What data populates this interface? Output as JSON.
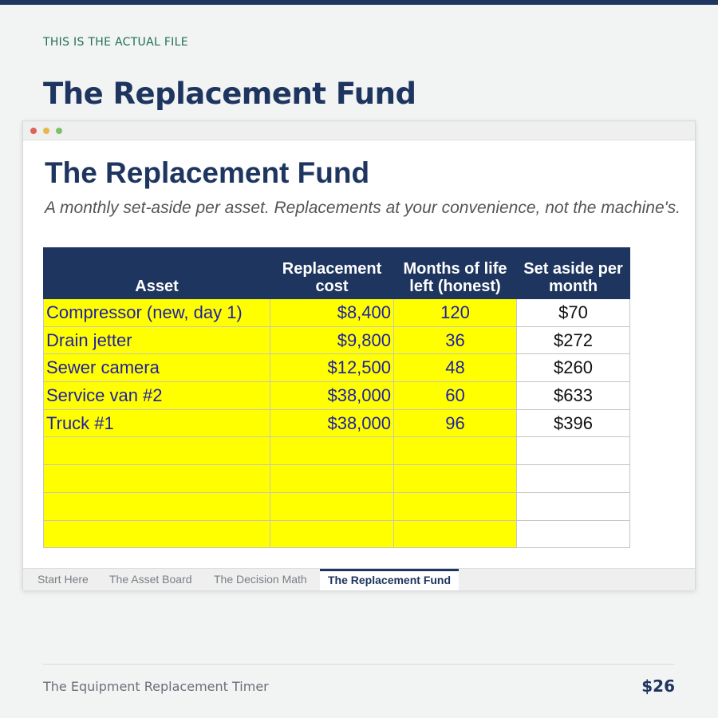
{
  "kicker": "THIS IS THE ACTUAL FILE",
  "headline": "The Replacement Fund",
  "sheet": {
    "title": "The Replacement Fund",
    "subtitle": "A monthly set-aside per asset. Replacements at your convenience, not the machine's.",
    "columns": [
      "Asset",
      "Replacement cost",
      "Months of life left (honest)",
      "Set aside per month"
    ],
    "rows": [
      {
        "asset": "Compressor (new, day 1)",
        "cost": "$8,400",
        "months": "120",
        "monthly": "$70"
      },
      {
        "asset": "Drain jetter",
        "cost": "$9,800",
        "months": "36",
        "monthly": "$272"
      },
      {
        "asset": "Sewer camera",
        "cost": "$12,500",
        "months": "48",
        "monthly": "$260"
      },
      {
        "asset": "Service van #2",
        "cost": "$38,000",
        "months": "60",
        "monthly": "$633"
      },
      {
        "asset": "Truck #1",
        "cost": "$38,000",
        "months": "96",
        "monthly": "$396"
      }
    ]
  },
  "tabs": [
    "Start Here",
    "The Asset Board",
    "The Decision Math",
    "The Replacement Fund"
  ],
  "active_tab": "The Replacement Fund",
  "footer": {
    "product": "The Equipment Replacement Timer",
    "price": "$26"
  },
  "colors": {
    "navy": "#1e3560",
    "input_yellow": "#ffff00",
    "input_text": "#1f1fa8",
    "kicker_green": "#1f6f53"
  }
}
